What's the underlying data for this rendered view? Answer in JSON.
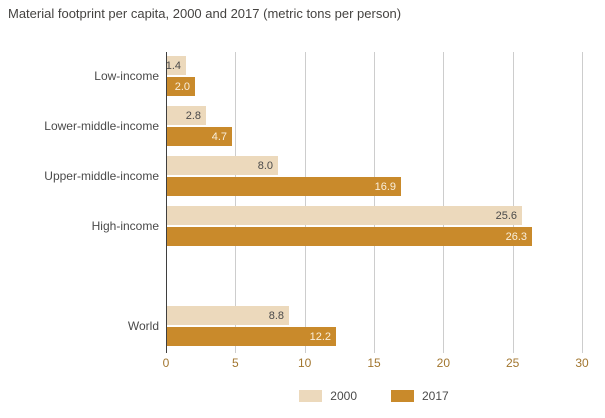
{
  "title": "Material footprint per capita, 2000 and 2017 (metric tons per person)",
  "colors": {
    "series_2000": "#ecd9bc",
    "series_2017": "#c98a2b",
    "value_label_on_light": "#4a4a4a",
    "value_label_on_dark": "#f9efdc",
    "category_label": "#4a4a4a",
    "tick_label": "#a2762f",
    "gridline": "#cdcdcd",
    "axis_line": "#3f3f3f",
    "title_text": "#454341",
    "background": "#ffffff"
  },
  "chart_data": {
    "type": "bar",
    "orientation": "horizontal",
    "title": "Material footprint per capita, 2000 and 2017 (metric tons per person)",
    "xlabel": "",
    "ylabel": "",
    "categories": [
      "Low-income",
      "Lower-middle-income",
      "Upper-middle-income",
      "High-income",
      "World"
    ],
    "series": [
      {
        "name": "2000",
        "values": [
          1.4,
          2.8,
          8.0,
          25.6,
          8.8
        ],
        "labels": [
          "1.4",
          "2.8",
          "8.0",
          "25.6",
          "8.8"
        ]
      },
      {
        "name": "2017",
        "values": [
          2.0,
          4.7,
          16.9,
          26.3,
          12.2
        ],
        "labels": [
          "2.0",
          "4.7",
          "16.9",
          "26.3",
          "12.2"
        ]
      }
    ],
    "xlim": [
      0,
      30
    ],
    "xticks": [
      0,
      5,
      10,
      15,
      20,
      25,
      30
    ],
    "grid": true,
    "value_labels": "inside-end",
    "legend_position": "bottom-center",
    "note": "blank row gap between High-income and World"
  }
}
